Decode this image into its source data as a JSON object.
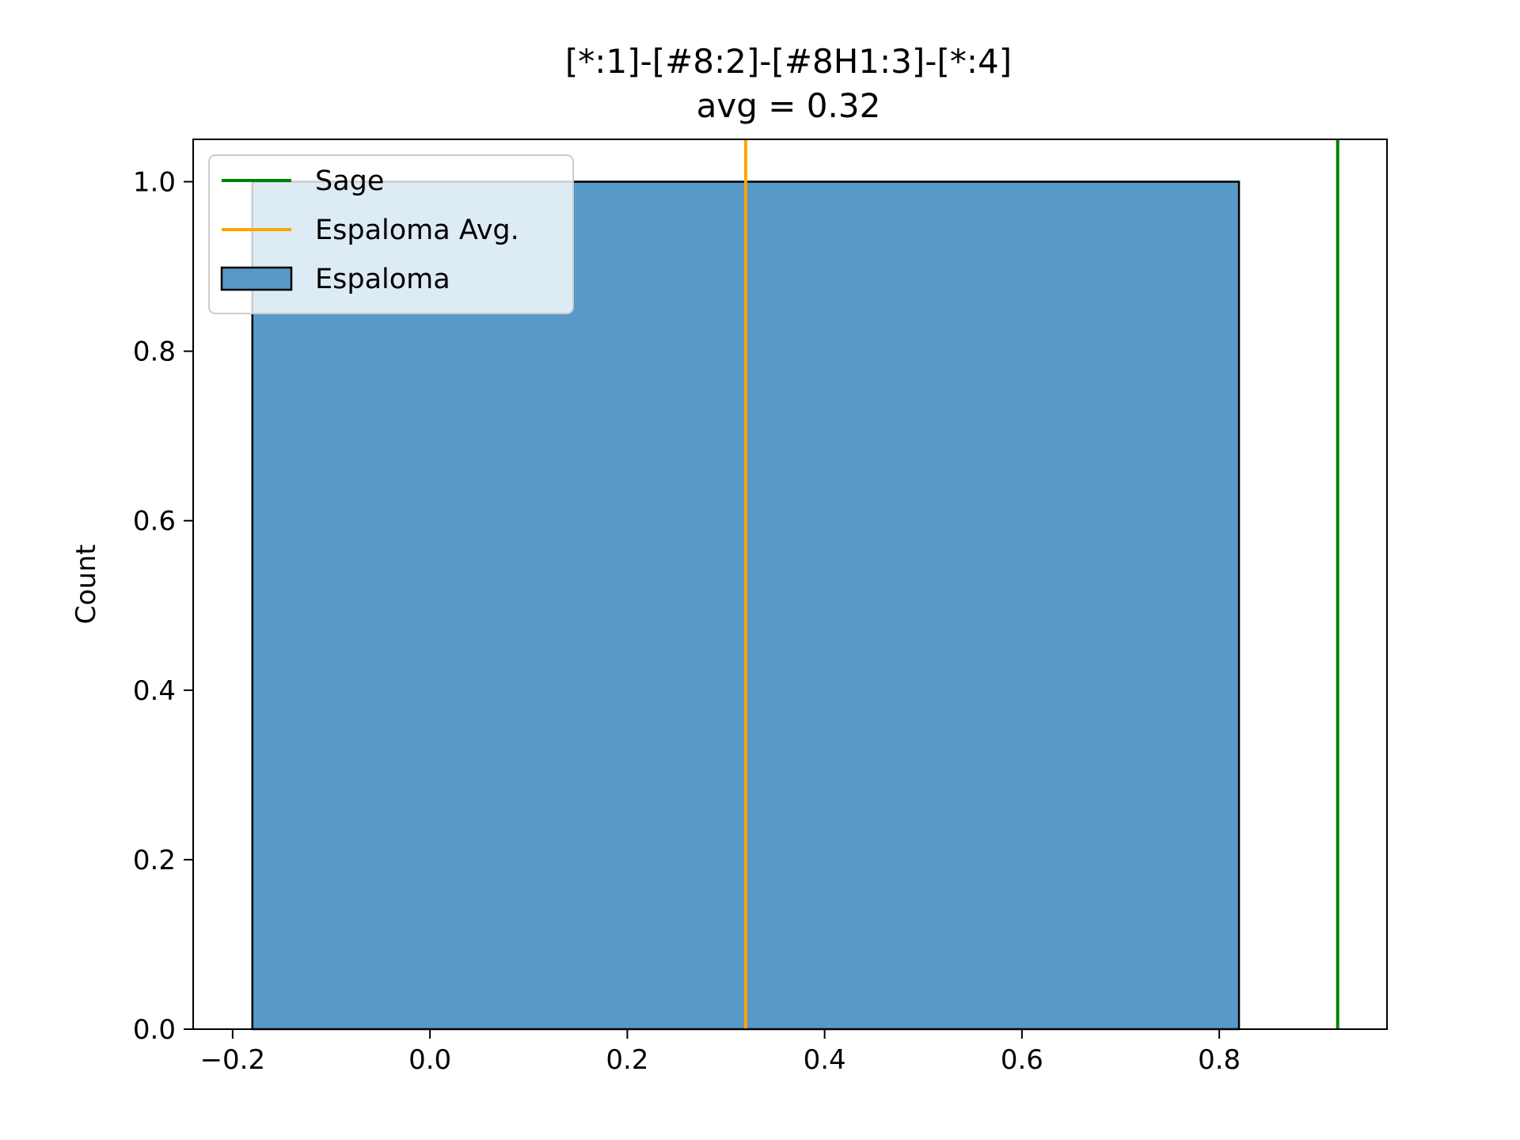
{
  "chart_data": {
    "type": "bar",
    "title": "[*:1]-[#8:2]-[#8H1:3]-[*:4]",
    "subtitle": "avg = 0.32",
    "xlabel": "",
    "ylabel": "Count",
    "xlim": [
      -0.24,
      0.97
    ],
    "ylim": [
      0.0,
      1.05
    ],
    "x_ticks": [
      -0.2,
      0.0,
      0.2,
      0.4,
      0.6,
      0.8
    ],
    "x_tick_labels": [
      "−0.2",
      "0.0",
      "0.2",
      "0.4",
      "0.6",
      "0.8"
    ],
    "y_ticks": [
      0.0,
      0.2,
      0.4,
      0.6,
      0.8,
      1.0
    ],
    "y_tick_labels": [
      "0.0",
      "0.2",
      "0.4",
      "0.6",
      "0.8",
      "1.0"
    ],
    "grid": false,
    "legend_position": "top-left",
    "bins": [
      {
        "start": -0.18,
        "end": 0.82,
        "count": 1
      }
    ],
    "vlines": [
      {
        "name": "Sage",
        "x": 0.92,
        "color": "#008000"
      },
      {
        "name": "Espaloma Avg.",
        "x": 0.32,
        "color": "#ffa500"
      }
    ],
    "series": [
      {
        "name": "Espaloma",
        "kind": "histogram",
        "color": "#5799c7",
        "edgecolor": "#000000"
      }
    ]
  }
}
